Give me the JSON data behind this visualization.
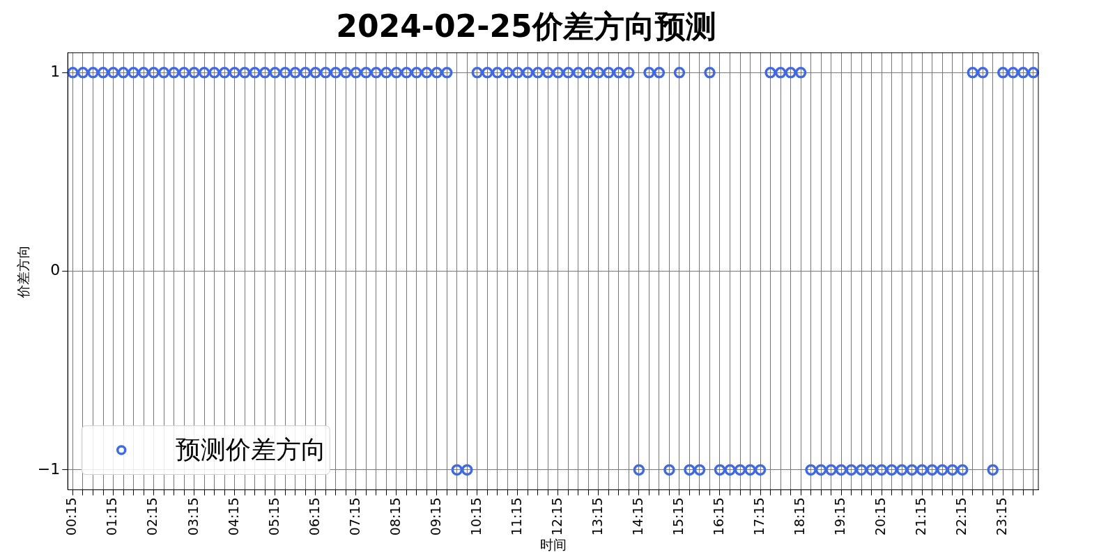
{
  "chart_data": {
    "type": "scatter",
    "title": "2024-02-25价差方向预测",
    "xlabel": "时间",
    "ylabel": "价差方向",
    "categories": [
      "00:15",
      null,
      null,
      null,
      "01:15",
      null,
      null,
      null,
      "02:15",
      null,
      null,
      null,
      "03:15",
      null,
      null,
      null,
      "04:15",
      null,
      null,
      null,
      "05:15",
      null,
      null,
      null,
      "06:15",
      null,
      null,
      null,
      "07:15",
      null,
      null,
      null,
      "08:15",
      null,
      null,
      null,
      "09:15",
      null,
      null,
      null,
      "10:15",
      null,
      null,
      null,
      "11:15",
      null,
      null,
      null,
      "12:15",
      null,
      null,
      null,
      "13:15",
      null,
      null,
      null,
      "14:15",
      null,
      null,
      null,
      "15:15",
      null,
      null,
      null,
      "16:15",
      null,
      null,
      null,
      "17:15",
      null,
      null,
      null,
      "18:15",
      null,
      null,
      null,
      "19:15",
      null,
      null,
      null,
      "20:15",
      null,
      null,
      null,
      "21:15",
      null,
      null,
      null,
      "22:15",
      null,
      null,
      null,
      "23:15",
      null,
      null,
      null
    ],
    "series": [
      {
        "name": "预测价差方向",
        "color": "#4169e1",
        "values": [
          1,
          1,
          1,
          1,
          1,
          1,
          1,
          1,
          1,
          1,
          1,
          1,
          1,
          1,
          1,
          1,
          1,
          1,
          1,
          1,
          1,
          1,
          1,
          1,
          1,
          1,
          1,
          1,
          1,
          1,
          1,
          1,
          1,
          1,
          1,
          1,
          1,
          1,
          -1,
          -1,
          1,
          1,
          1,
          1,
          1,
          1,
          1,
          1,
          1,
          1,
          1,
          1,
          1,
          1,
          1,
          1,
          -1,
          1,
          1,
          -1,
          1,
          -1,
          -1,
          1,
          -1,
          -1,
          -1,
          -1,
          -1,
          1,
          1,
          1,
          1,
          -1,
          -1,
          -1,
          -1,
          -1,
          -1,
          -1,
          -1,
          -1,
          -1,
          -1,
          -1,
          -1,
          -1,
          -1,
          -1,
          1,
          1,
          -1,
          1,
          1,
          1,
          1
        ]
      }
    ],
    "ylim": [
      -1.1,
      1.1
    ],
    "yticks": [
      {
        "value": -1,
        "label": "−1"
      },
      0,
      1
    ],
    "grid": true,
    "legend": "bottom left",
    "marker": "circle"
  }
}
